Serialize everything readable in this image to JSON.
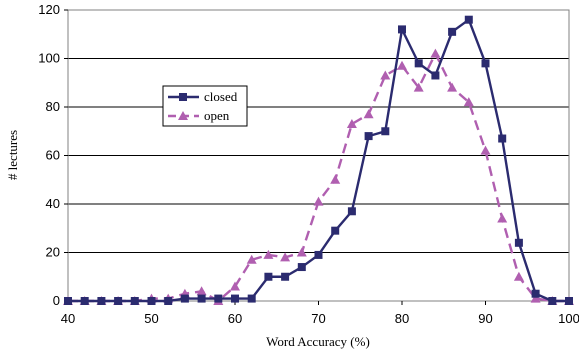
{
  "chart_data": {
    "type": "line",
    "xlabel": "Word Accuracy (%)",
    "ylabel": "# lectures",
    "xlim": [
      40,
      100
    ],
    "ylim": [
      0,
      120
    ],
    "x_ticks": [
      "40",
      "50",
      "60",
      "70",
      "80",
      "90",
      "100"
    ],
    "y_ticks": [
      "0",
      "20",
      "40",
      "60",
      "80",
      "100",
      "120"
    ],
    "grid": "horizontal",
    "legend_position": "left-center",
    "series": [
      {
        "name": "closed",
        "color": "#2b2b6f",
        "marker": "square",
        "line_style": "solid",
        "x": [
          40,
          42,
          44,
          46,
          48,
          50,
          52,
          54,
          56,
          58,
          60,
          62,
          64,
          66,
          68,
          70,
          72,
          74,
          76,
          78,
          80,
          82,
          84,
          86,
          88,
          90,
          92,
          94,
          96,
          98,
          100
        ],
        "y": [
          0,
          0,
          0,
          0,
          0,
          0,
          0,
          1,
          1,
          1,
          1,
          1,
          10,
          10,
          14,
          19,
          29,
          37,
          68,
          70,
          112,
          98,
          93,
          111,
          116,
          98,
          67,
          24,
          3,
          0,
          0
        ]
      },
      {
        "name": "open",
        "color": "#b05fb0",
        "marker": "triangle",
        "line_style": "dashed",
        "x": [
          40,
          42,
          44,
          46,
          48,
          50,
          52,
          54,
          56,
          58,
          60,
          62,
          64,
          66,
          68,
          70,
          72,
          74,
          76,
          78,
          80,
          82,
          84,
          86,
          88,
          90,
          92,
          94,
          96,
          98,
          100
        ],
        "y": [
          0,
          0,
          0,
          0,
          0,
          1,
          1,
          3,
          4,
          0,
          6,
          17,
          19,
          18,
          20,
          41,
          50,
          73,
          77,
          93,
          97,
          88,
          102,
          88,
          82,
          62,
          34,
          10,
          1,
          0,
          0
        ]
      }
    ]
  }
}
